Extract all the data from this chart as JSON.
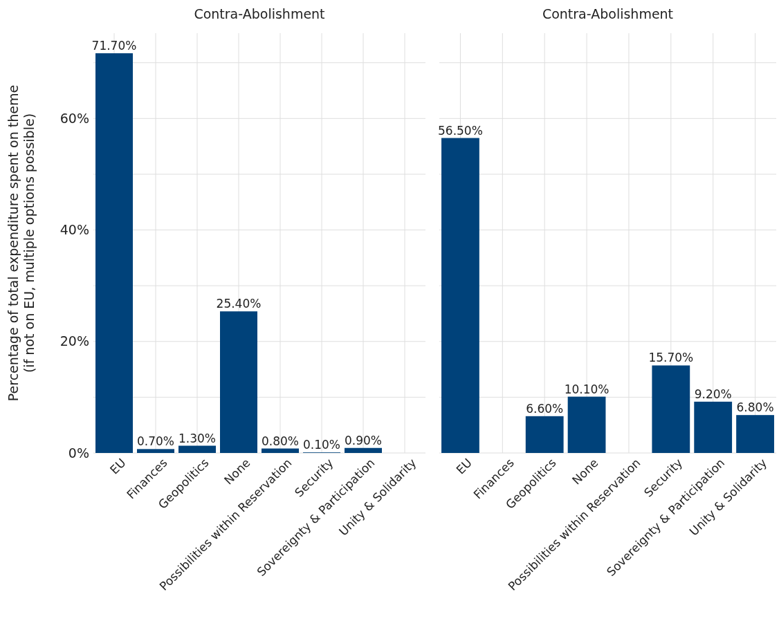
{
  "chart_data": [
    {
      "type": "bar",
      "title": "Contra-Abolishment",
      "ylabel": "Percentage of total expenditure spent on theme\n(if not on EU, multiple options possible)",
      "categories": [
        "EU",
        "Finances",
        "Geopolitics",
        "None",
        "Possibilities within Reservation",
        "Security",
        "Sovereignty & Participation",
        "Unity & Solidarity"
      ],
      "values": [
        71.7,
        0.7,
        1.3,
        25.4,
        0.8,
        0.1,
        0.9,
        null
      ],
      "value_labels": [
        "71.70%",
        "0.70%",
        "1.30%",
        "25.40%",
        "0.80%",
        "0.10%",
        "0.90%",
        null
      ],
      "color": "#00427a",
      "ylim": [
        0,
        75.3
      ],
      "yticks": [
        {
          "value": 0,
          "label": "0%"
        },
        {
          "value": 10,
          "label": null
        },
        {
          "value": 20,
          "label": "20%"
        },
        {
          "value": 30,
          "label": null
        },
        {
          "value": 40,
          "label": "40%"
        },
        {
          "value": 50,
          "label": null
        },
        {
          "value": 60,
          "label": "60%"
        },
        {
          "value": 70,
          "label": null
        }
      ],
      "grid": true
    },
    {
      "type": "bar",
      "title": "Contra-Abolishment",
      "categories": [
        "EU",
        "Finances",
        "Geopolitics",
        "None",
        "Possibilities within Reservation",
        "Security",
        "Sovereignty & Participation",
        "Unity & Solidarity"
      ],
      "values": [
        56.5,
        null,
        6.6,
        10.1,
        null,
        15.7,
        9.2,
        6.8
      ],
      "value_labels": [
        "56.50%",
        null,
        "6.60%",
        "10.10%",
        null,
        "15.70%",
        "9.20%",
        "6.80%"
      ],
      "color": "#00427a",
      "ylim": [
        0,
        75.3
      ],
      "yticks": [
        {
          "value": 0,
          "label": null
        },
        {
          "value": 10,
          "label": null
        },
        {
          "value": 20,
          "label": null
        },
        {
          "value": 30,
          "label": null
        },
        {
          "value": 40,
          "label": null
        },
        {
          "value": 50,
          "label": null
        },
        {
          "value": 60,
          "label": null
        },
        {
          "value": 70,
          "label": null
        }
      ],
      "grid": true,
      "tick_labels": "x"
    }
  ]
}
